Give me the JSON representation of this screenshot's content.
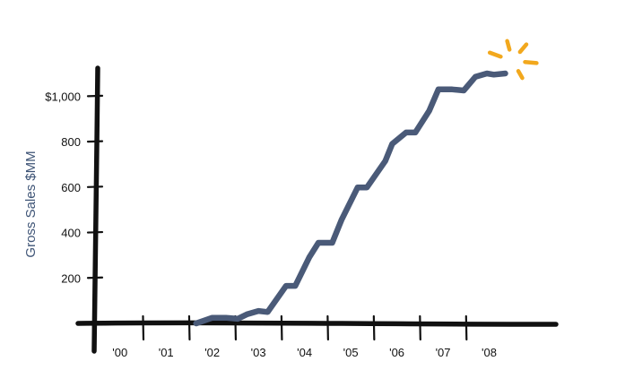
{
  "chart_data": {
    "type": "line",
    "title": "",
    "xlabel": "",
    "ylabel": "Gross Sales $MM",
    "x_tick_labels": [
      "'00",
      "'01",
      "'02",
      "'03",
      "'04",
      "'05",
      "'06",
      "'07",
      "'08"
    ],
    "y_tick_labels": [
      "200",
      "400",
      "600",
      "800",
      "$1,000"
    ],
    "y_tick_values": [
      200,
      400,
      600,
      800,
      1000
    ],
    "x_range": [
      1999.5,
      2009.0
    ],
    "ylim": [
      0,
      1100
    ],
    "grid": false,
    "legend": "none",
    "series": [
      {
        "x": [
          2001.65,
          2002.0,
          2002.3,
          2002.55,
          2002.75,
          2003.0,
          2003.2,
          2003.6,
          2003.8,
          2004.1,
          2004.3,
          2004.6,
          2004.8,
          2005.15,
          2005.35,
          2005.75,
          2005.9,
          2006.2,
          2006.4,
          2006.7,
          2006.9,
          2007.2,
          2007.45,
          2007.7,
          2007.95,
          2008.1,
          2008.35
        ],
        "y": [
          0,
          25,
          25,
          20,
          40,
          55,
          50,
          165,
          165,
          290,
          355,
          355,
          455,
          598,
          598,
          715,
          790,
          840,
          840,
          935,
          1030,
          1030,
          1025,
          1085,
          1100,
          1095,
          1100
        ]
      }
    ],
    "colors": {
      "line": "#4a5a78",
      "axis": "#111111",
      "burst": "#f2a81d",
      "axis_title": "#3e5476"
    },
    "annotation": "spark-burst-icon at series end"
  }
}
